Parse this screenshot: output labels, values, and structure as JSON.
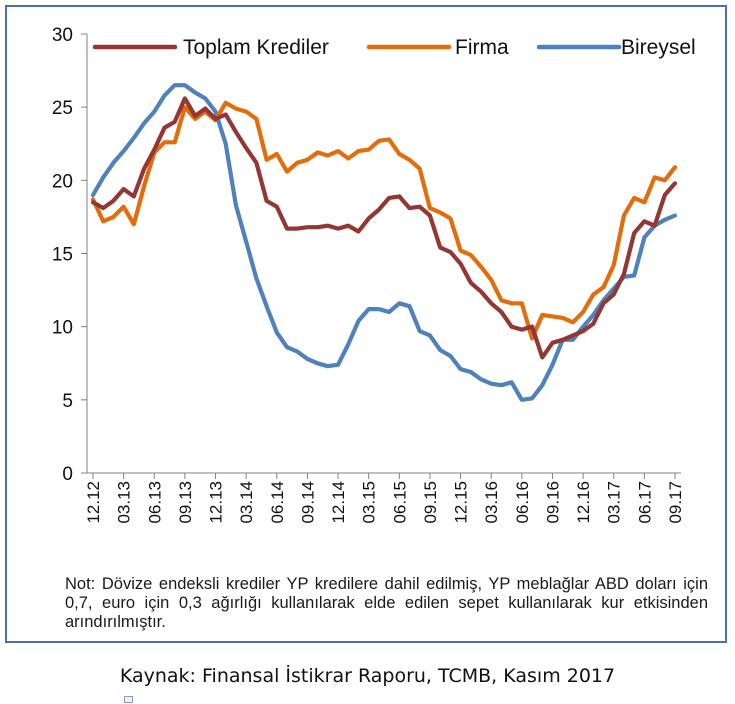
{
  "note": "Not: Dövize endeksli krediler YP kredilere dahil edilmiş, YP meblağlar ABD doları için 0,7, euro için 0,3 ağırlığı kullanılarak elde edilen sepet kullanılarak kur etkisinden arındırılmıştır.",
  "source": "Kaynak: Finansal İstikrar Raporu, TCMB, Kasım 2017",
  "chart_data": {
    "type": "line",
    "title": "",
    "xlabel": "",
    "ylabel": "",
    "ylim": [
      0,
      30
    ],
    "yticks": [
      0,
      5,
      10,
      15,
      20,
      25,
      30
    ],
    "grid": false,
    "legend_position": "top",
    "x_tick_labels": [
      "12.12",
      "03.13",
      "06.13",
      "09.13",
      "12.13",
      "03.14",
      "06.14",
      "09.14",
      "12.14",
      "03.15",
      "06.15",
      "09.15",
      "12.15",
      "03.16",
      "06.16",
      "09.16",
      "12.16",
      "03.17",
      "06.17",
      "09.17"
    ],
    "x": [
      "12.12",
      "01.13",
      "02.13",
      "03.13",
      "04.13",
      "05.13",
      "06.13",
      "07.13",
      "08.13",
      "09.13",
      "10.13",
      "11.13",
      "12.13",
      "01.14",
      "02.14",
      "03.14",
      "04.14",
      "05.14",
      "06.14",
      "07.14",
      "08.14",
      "09.14",
      "10.14",
      "11.14",
      "12.14",
      "01.15",
      "02.15",
      "03.15",
      "04.15",
      "05.15",
      "06.15",
      "07.15",
      "08.15",
      "09.15",
      "10.15",
      "11.15",
      "12.15",
      "01.16",
      "02.16",
      "03.16",
      "04.16",
      "05.16",
      "06.16",
      "07.16",
      "08.16",
      "09.16",
      "10.16",
      "11.16",
      "12.16",
      "01.17",
      "02.17",
      "03.17",
      "04.17",
      "05.17",
      "06.17",
      "07.17",
      "08.17",
      "09.17"
    ],
    "series": [
      {
        "name": "Toplam Krediler",
        "color": "#943634",
        "values": [
          18.5,
          18.1,
          18.6,
          19.4,
          18.9,
          20.8,
          22.1,
          23.6,
          24.0,
          25.6,
          24.4,
          24.9,
          24.2,
          24.5,
          23.3,
          22.2,
          21.2,
          18.6,
          18.2,
          16.7,
          16.7,
          16.8,
          16.8,
          16.9,
          16.7,
          16.9,
          16.5,
          17.4,
          18.0,
          18.8,
          18.9,
          18.1,
          18.2,
          17.6,
          15.4,
          15.1,
          14.3,
          13.0,
          12.4,
          11.6,
          11.0,
          10.0,
          9.8,
          10.0,
          7.9,
          8.9,
          9.1,
          9.4,
          9.7,
          10.2,
          11.6,
          12.2,
          13.6,
          16.4,
          17.2,
          16.9,
          19.0,
          19.8
        ]
      },
      {
        "name": "Firma",
        "color": "#e46c0a",
        "values": [
          18.7,
          17.2,
          17.5,
          18.2,
          17.0,
          19.6,
          21.9,
          22.6,
          22.6,
          25.0,
          24.2,
          24.7,
          24.1,
          25.3,
          24.9,
          24.7,
          24.2,
          21.4,
          21.8,
          20.6,
          21.2,
          21.4,
          21.9,
          21.7,
          22.0,
          21.5,
          22.0,
          22.1,
          22.7,
          22.8,
          21.8,
          21.4,
          20.8,
          18.1,
          17.8,
          17.4,
          15.2,
          14.9,
          14.1,
          13.2,
          11.8,
          11.6,
          11.6,
          9.2,
          10.8,
          10.7,
          10.6,
          10.3,
          11.0,
          12.2,
          12.7,
          14.2,
          17.6,
          18.8,
          18.5,
          20.2,
          20.0,
          20.9
        ]
      },
      {
        "name": "Bireysel",
        "color": "#4f81bd",
        "values": [
          19.0,
          20.2,
          21.2,
          22.0,
          22.9,
          23.9,
          24.7,
          25.8,
          26.5,
          26.5,
          26.0,
          25.6,
          24.7,
          22.5,
          18.3,
          15.8,
          13.3,
          11.4,
          9.6,
          8.6,
          8.3,
          7.8,
          7.5,
          7.3,
          7.4,
          8.8,
          10.4,
          11.2,
          11.2,
          11.0,
          11.6,
          11.4,
          9.7,
          9.4,
          8.4,
          8.0,
          7.1,
          6.9,
          6.4,
          6.1,
          6.0,
          6.2,
          5.0,
          5.1,
          6.0,
          7.4,
          9.1,
          9.1,
          10.0,
          10.8,
          11.8,
          12.6,
          13.4,
          13.5,
          16.1,
          16.9,
          17.3,
          17.6
        ]
      }
    ]
  }
}
